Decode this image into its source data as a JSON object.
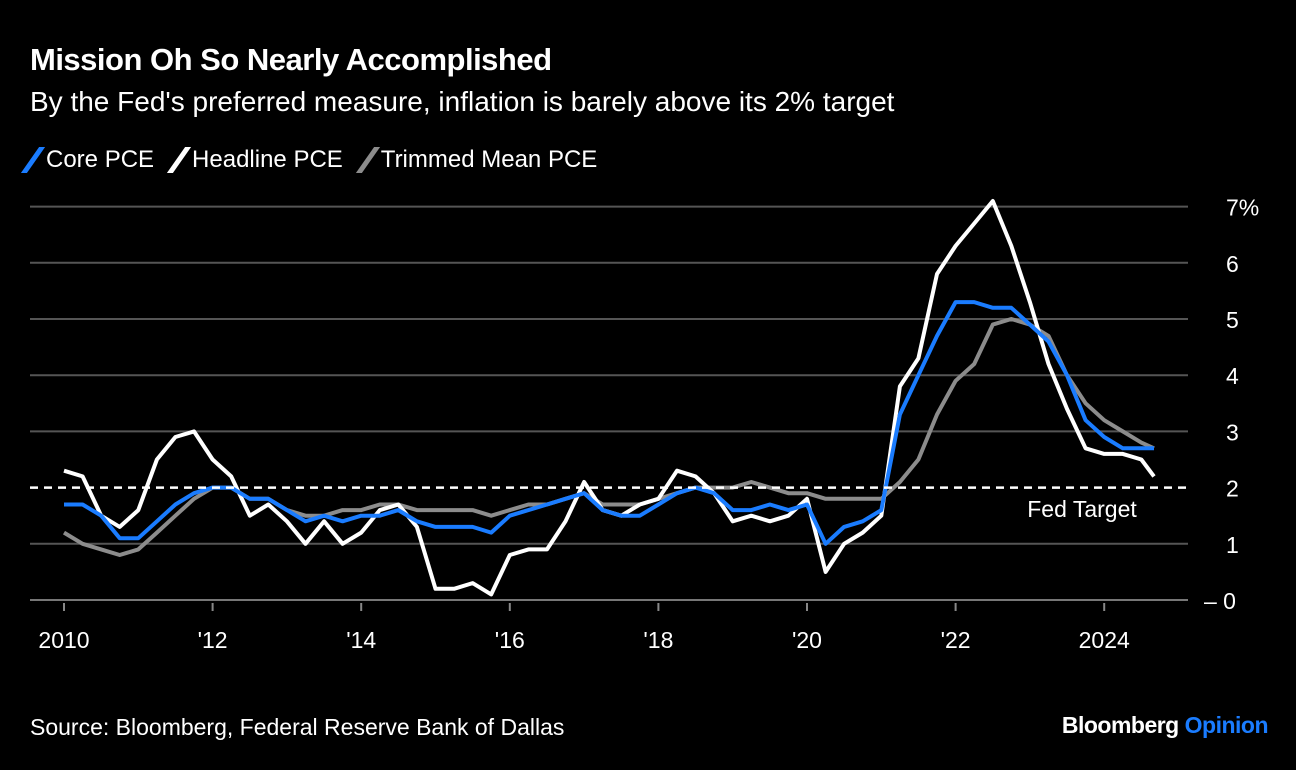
{
  "title": "Mission Oh So Nearly Accomplished",
  "subtitle": "By the Fed's preferred measure, inflation is barely above its 2% target",
  "source": "Source: Bloomberg, Federal Reserve Bank of Dallas",
  "logo": {
    "brand": "Bloomberg",
    "product": "Opinion",
    "product_color": "#1a7cff"
  },
  "chart_data": {
    "type": "line",
    "title": "Mission Oh So Nearly Accomplished",
    "xlabel": "",
    "ylabel": "",
    "ylim": [
      0,
      7
    ],
    "xlim": [
      2009.55,
      2025.5
    ],
    "yticks": [
      {
        "v": 0,
        "label": "0"
      },
      {
        "v": 1,
        "label": "1"
      },
      {
        "v": 2,
        "label": "2"
      },
      {
        "v": 3,
        "label": "3"
      },
      {
        "v": 4,
        "label": "4"
      },
      {
        "v": 5,
        "label": "5"
      },
      {
        "v": 6,
        "label": "6"
      },
      {
        "v": 7,
        "label": "7%"
      }
    ],
    "xticks": [
      {
        "v": 2010,
        "label": "2010"
      },
      {
        "v": 2012,
        "label": "'12"
      },
      {
        "v": 2014,
        "label": "'14"
      },
      {
        "v": 2016,
        "label": "'16"
      },
      {
        "v": 2018,
        "label": "'18"
      },
      {
        "v": 2020,
        "label": "'20"
      },
      {
        "v": 2022,
        "label": "'22"
      },
      {
        "v": 2024,
        "label": "2024"
      }
    ],
    "grid": true,
    "legend_placement": "top-left",
    "annotation": {
      "label": "Fed Target",
      "value": 2
    },
    "series": [
      {
        "name": "Core PCE",
        "color": "#1a7cff",
        "values": [
          1.7,
          1.7,
          1.5,
          1.1,
          1.1,
          1.4,
          1.7,
          1.9,
          2.0,
          2.0,
          1.8,
          1.8,
          1.6,
          1.4,
          1.5,
          1.4,
          1.5,
          1.5,
          1.6,
          1.4,
          1.3,
          1.3,
          1.3,
          1.2,
          1.5,
          1.6,
          1.7,
          1.8,
          1.9,
          1.6,
          1.5,
          1.5,
          1.7,
          1.9,
          2.0,
          1.9,
          1.6,
          1.6,
          1.7,
          1.6,
          1.7,
          1.0,
          1.3,
          1.4,
          1.6,
          3.3,
          4.0,
          4.7,
          5.3,
          5.3,
          5.2,
          5.2,
          4.9,
          4.6,
          4.0,
          3.2,
          2.9,
          2.7,
          2.7,
          2.7
        ]
      },
      {
        "name": "Headline PCE",
        "color": "#ffffff",
        "values": [
          2.3,
          2.2,
          1.5,
          1.3,
          1.6,
          2.5,
          2.9,
          3.0,
          2.5,
          2.2,
          1.5,
          1.7,
          1.4,
          1.0,
          1.4,
          1.0,
          1.2,
          1.6,
          1.7,
          1.3,
          0.2,
          0.2,
          0.3,
          0.1,
          0.8,
          0.9,
          0.9,
          1.4,
          2.1,
          1.6,
          1.5,
          1.7,
          1.8,
          2.3,
          2.2,
          1.9,
          1.4,
          1.5,
          1.4,
          1.5,
          1.8,
          0.5,
          1.0,
          1.2,
          1.5,
          3.8,
          4.3,
          5.8,
          6.3,
          6.7,
          7.1,
          6.3,
          5.3,
          4.2,
          3.4,
          2.7,
          2.6,
          2.6,
          2.5,
          2.2
        ]
      },
      {
        "name": "Trimmed Mean PCE",
        "color": "#8c8c8c",
        "values": [
          1.2,
          1.0,
          0.9,
          0.8,
          0.9,
          1.2,
          1.5,
          1.8,
          2.0,
          2.0,
          1.8,
          1.8,
          1.6,
          1.5,
          1.5,
          1.6,
          1.6,
          1.7,
          1.7,
          1.6,
          1.6,
          1.6,
          1.6,
          1.5,
          1.6,
          1.7,
          1.7,
          1.8,
          1.9,
          1.7,
          1.7,
          1.7,
          1.8,
          1.9,
          2.0,
          2.0,
          2.0,
          2.1,
          2.0,
          1.9,
          1.9,
          1.8,
          1.8,
          1.8,
          1.8,
          2.1,
          2.5,
          3.3,
          3.9,
          4.2,
          4.9,
          5.0,
          4.9,
          4.7,
          4.0,
          3.5,
          3.2,
          3.0,
          2.8,
          2.7
        ]
      }
    ],
    "x_start": 2010,
    "x_step": 0.25,
    "x_last": 2024.67
  }
}
